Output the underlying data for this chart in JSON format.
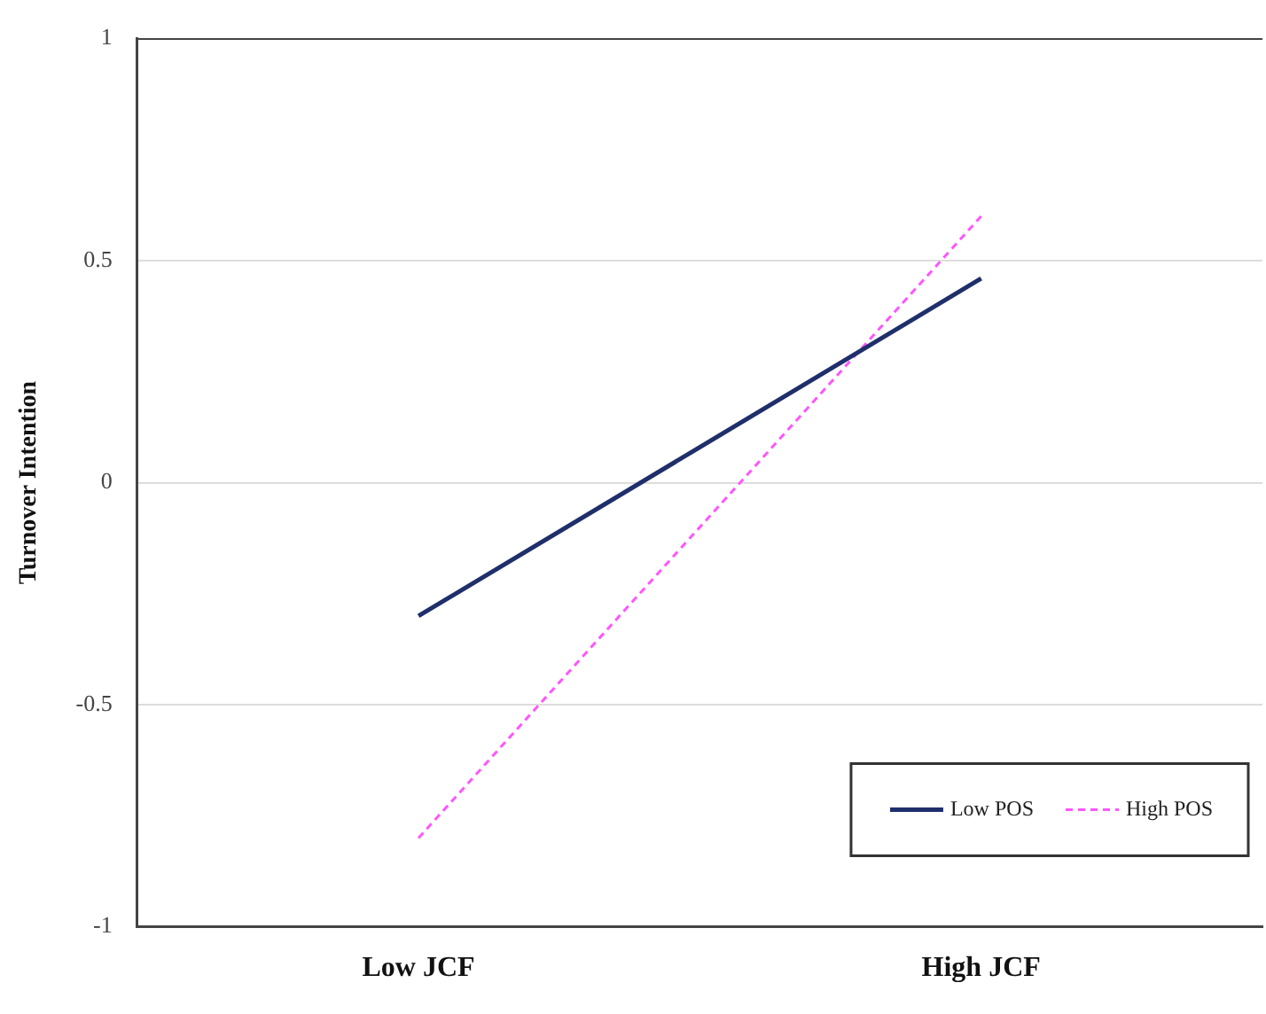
{
  "chart_data": {
    "type": "line",
    "ylabel": "Turnover Intention",
    "categories": [
      "Low JCF",
      "High JCF"
    ],
    "series": [
      {
        "name": "Low POS",
        "color": "#1f2f6b",
        "values": [
          -0.3,
          0.46
        ],
        "line_style": "solid"
      },
      {
        "name": "High POS",
        "color": "#ff55ff",
        "values": [
          -0.8,
          0.6
        ],
        "line_style": "dashed"
      }
    ],
    "ylim": [
      -1,
      1
    ],
    "yticks": [
      -1,
      -0.5,
      0,
      0.5,
      1
    ],
    "grid": "y",
    "legend": "bottom right",
    "marker": "none"
  }
}
